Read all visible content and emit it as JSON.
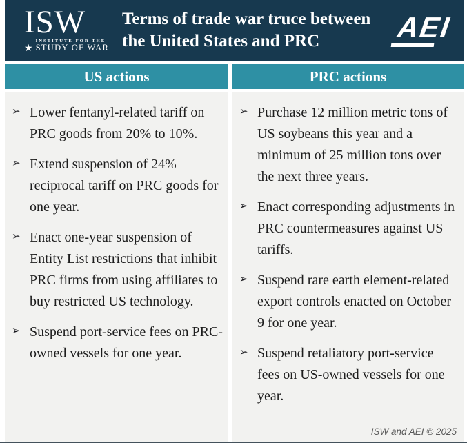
{
  "header": {
    "isw": {
      "acronym": "ISW",
      "star": "★",
      "line1": "INSTITUTE FOR THE",
      "line2": "STUDY OF WAR"
    },
    "title_line1": "Terms of trade war truce between",
    "title_line2": "the United States and PRC",
    "aei": {
      "text": "AEI"
    }
  },
  "bullet_glyph": "➢",
  "columns": [
    {
      "header": "US actions",
      "items": [
        "Lower fentanyl-related tariff on PRC goods from 20% to 10%.",
        "Extend suspension of 24% reciprocal tariff on PRC goods for one year.",
        "Enact one-year suspension of Entity List restrictions that inhibit PRC firms from using affiliates to buy restricted US technology.",
        "Suspend port-service fees on PRC-owned vessels for one year."
      ]
    },
    {
      "header": "PRC actions",
      "items": [
        "Purchase 12 million metric tons of US soybeans this year and a minimum of 25 million tons over the next three years.",
        "Enact corresponding adjustments in PRC countermeasures against US tariffs.",
        "Suspend rare earth element-related export controls enacted on October 9 for one year.",
        "Suspend retaliatory port-service fees on US-owned vessels for one year."
      ]
    }
  ],
  "footer": {
    "credit": "ISW and AEI © 2025"
  },
  "colors": {
    "navy": "#17394f",
    "teal": "#2e90a4",
    "panel": "#f2f2f0",
    "ink": "#1e1e1e",
    "muted": "#5a5a5a"
  }
}
